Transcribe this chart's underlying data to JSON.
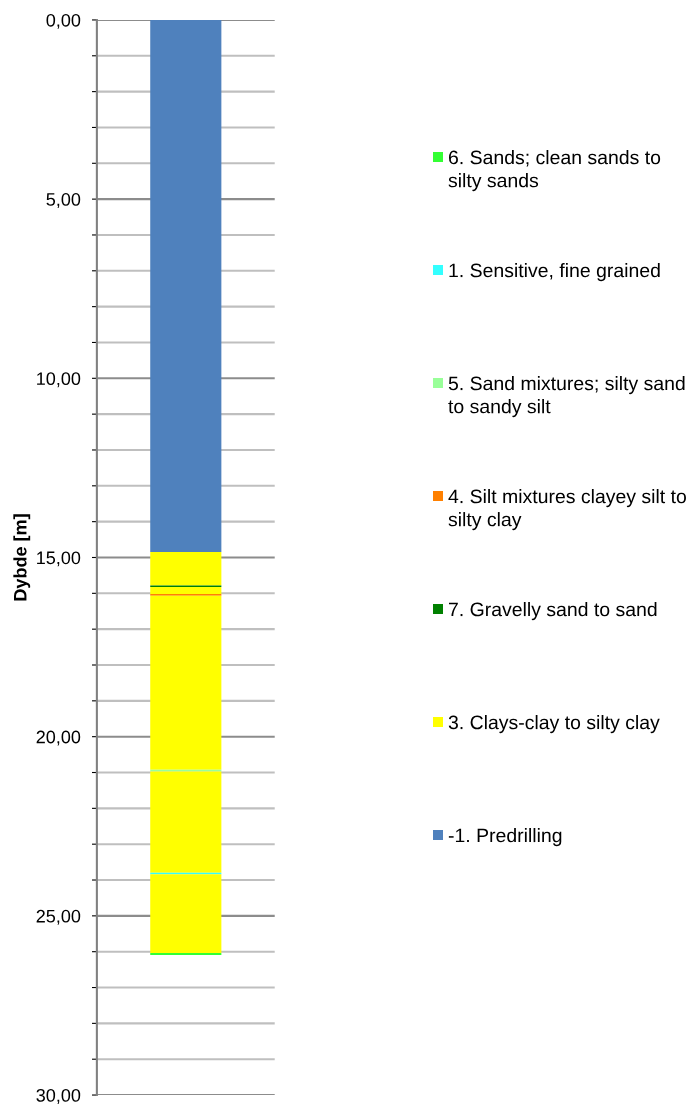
{
  "chart_data": {
    "type": "bar",
    "stacked": true,
    "ylabel": "Dybde [m]",
    "categories": [
      null
    ],
    "series": [
      {
        "name": "-1. Predrilling",
        "color": "#4f81bd",
        "values": [
          14.85
        ]
      },
      {
        "name": "3. Clays-clay to silty clay",
        "color": "#ffff00",
        "values": [
          0.93
        ]
      },
      {
        "name": "7. Gravelly sand to sand",
        "color": "#008000",
        "values": [
          0.04
        ]
      },
      {
        "color": "#ffff00",
        "values": [
          0.2
        ]
      },
      {
        "name": "4. Silt mixtures clayey silt to silty clay",
        "color": "#ff8000",
        "values": [
          0.05
        ]
      },
      {
        "color": "#ffff00",
        "values": [
          4.85
        ]
      },
      {
        "name": "5. Sand mixtures; silty sand to sandy silt",
        "color": "#99ff99",
        "values": [
          0.05
        ]
      },
      {
        "color": "#ffff00",
        "values": [
          2.83
        ]
      },
      {
        "name": "1. Sensitive, fine grained",
        "color": "#33ffff",
        "values": [
          0.04
        ]
      },
      {
        "color": "#ffff00",
        "values": [
          2.2
        ]
      },
      {
        "name": "6. Sands; clean sands to silty sands",
        "color": "#33ff33",
        "values": [
          0.05
        ]
      }
    ],
    "ylim": [
      30,
      0
    ],
    "yticks": [
      {
        "value": 0,
        "label": "0,00"
      },
      {
        "value": 1,
        "label": null
      },
      {
        "value": 2,
        "label": null
      },
      {
        "value": 3,
        "label": null
      },
      {
        "value": 4,
        "label": null
      },
      {
        "value": 5,
        "label": "5,00"
      },
      {
        "value": 6,
        "label": null
      },
      {
        "value": 7,
        "label": null
      },
      {
        "value": 8,
        "label": null
      },
      {
        "value": 9,
        "label": null
      },
      {
        "value": 10,
        "label": "10,00"
      },
      {
        "value": 11,
        "label": null
      },
      {
        "value": 12,
        "label": null
      },
      {
        "value": 13,
        "label": null
      },
      {
        "value": 14,
        "label": null
      },
      {
        "value": 15,
        "label": "15,00"
      },
      {
        "value": 16,
        "label": null
      },
      {
        "value": 17,
        "label": null
      },
      {
        "value": 18,
        "label": null
      },
      {
        "value": 19,
        "label": null
      },
      {
        "value": 20,
        "label": "20,00"
      },
      {
        "value": 21,
        "label": null
      },
      {
        "value": 22,
        "label": null
      },
      {
        "value": 23,
        "label": null
      },
      {
        "value": 24,
        "label": null
      },
      {
        "value": 25,
        "label": "25,00"
      },
      {
        "value": 26,
        "label": null
      },
      {
        "value": 27,
        "label": null
      },
      {
        "value": 28,
        "label": null
      },
      {
        "value": 29,
        "label": null
      },
      {
        "value": 30,
        "label": "30,00"
      }
    ],
    "grid": "y",
    "legend": "right"
  }
}
